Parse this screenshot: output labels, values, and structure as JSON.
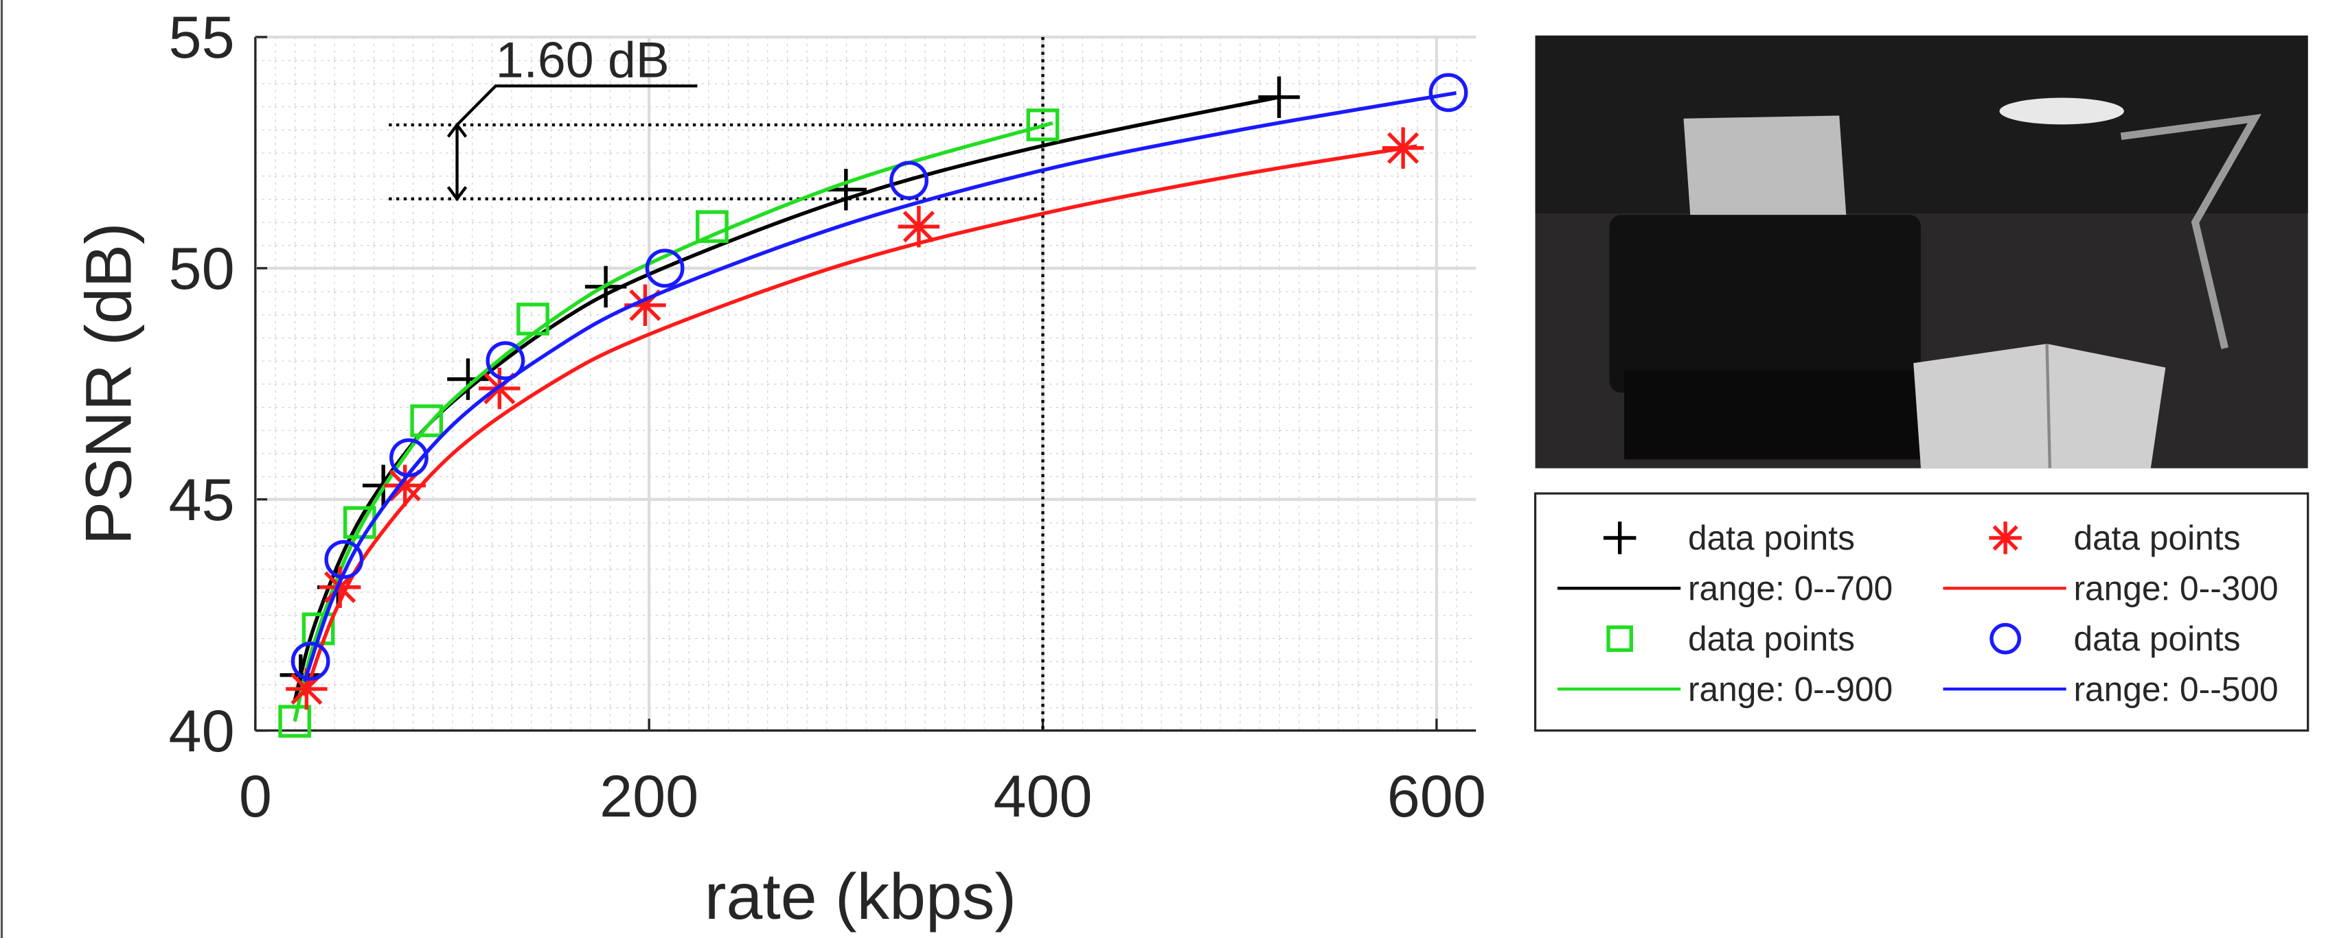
{
  "chart_data": {
    "type": "line",
    "xlabel": "rate (kbps)",
    "ylabel": "PSNR (dB)",
    "xlim": [
      0,
      620
    ],
    "ylim": [
      40,
      55
    ],
    "xticks": [
      0,
      200,
      400,
      600
    ],
    "yticks": [
      40,
      45,
      50,
      55
    ],
    "grid": true,
    "annotation": {
      "text": "1.60 dB",
      "hlines": [
        53.1,
        51.5
      ],
      "vline": 400
    },
    "series": [
      {
        "name": "data points",
        "color": "#000000",
        "marker": "plus",
        "x": [
          23,
          42,
          65,
          108,
          178,
          300,
          520
        ],
        "values": [
          41.2,
          43.1,
          45.3,
          47.6,
          49.6,
          51.7,
          53.7
        ]
      },
      {
        "name": "range: 0--700",
        "color": "#000000",
        "x": [
          20,
          30,
          50,
          75,
          100,
          150,
          200,
          300,
          400,
          520
        ],
        "values": [
          40.64,
          42.27,
          44.32,
          45.94,
          47.1,
          48.72,
          49.87,
          51.5,
          52.65,
          53.7
        ]
      },
      {
        "name": "data points",
        "color": "#22dd22",
        "marker": "square",
        "x": [
          20,
          32,
          53,
          87,
          141,
          232,
          400
        ],
        "values": [
          40.2,
          42.2,
          44.5,
          46.7,
          48.9,
          50.9,
          53.1
        ]
      },
      {
        "name": "range: 0--900",
        "color": "#22dd22",
        "x": [
          20,
          30,
          50,
          75,
          100,
          150,
          200,
          300,
          405
        ],
        "values": [
          40.2,
          41.92,
          44.12,
          45.88,
          47.14,
          48.86,
          50.1,
          51.85,
          53.14
        ]
      },
      {
        "name": "data points",
        "color": "#ff1a1a",
        "marker": "star",
        "x": [
          26,
          43,
          76,
          124,
          198,
          337,
          583
        ],
        "values": [
          40.9,
          43.1,
          45.3,
          47.4,
          49.2,
          50.9,
          52.6
        ]
      },
      {
        "name": "range: 0--300",
        "color": "#ff1a1a",
        "x": [
          25,
          40,
          60,
          100,
          150,
          200,
          300,
          400,
          500,
          590
        ],
        "values": [
          40.75,
          42.52,
          44.04,
          45.98,
          47.5,
          48.57,
          50.1,
          51.18,
          52.02,
          52.64
        ]
      },
      {
        "name": "data points",
        "color": "#1a1aff",
        "marker": "circle",
        "x": [
          28,
          45,
          78,
          127,
          208,
          332,
          606
        ],
        "values": [
          41.5,
          43.7,
          45.9,
          48.0,
          50.0,
          51.9,
          53.8
        ]
      },
      {
        "name": "range: 0--500",
        "color": "#1a1aff",
        "x": [
          25,
          40,
          60,
          100,
          150,
          200,
          300,
          400,
          500,
          610
        ],
        "values": [
          41.06,
          42.93,
          44.53,
          46.6,
          48.2,
          49.36,
          50.95,
          52.12,
          52.99,
          53.79
        ]
      }
    ]
  }
}
